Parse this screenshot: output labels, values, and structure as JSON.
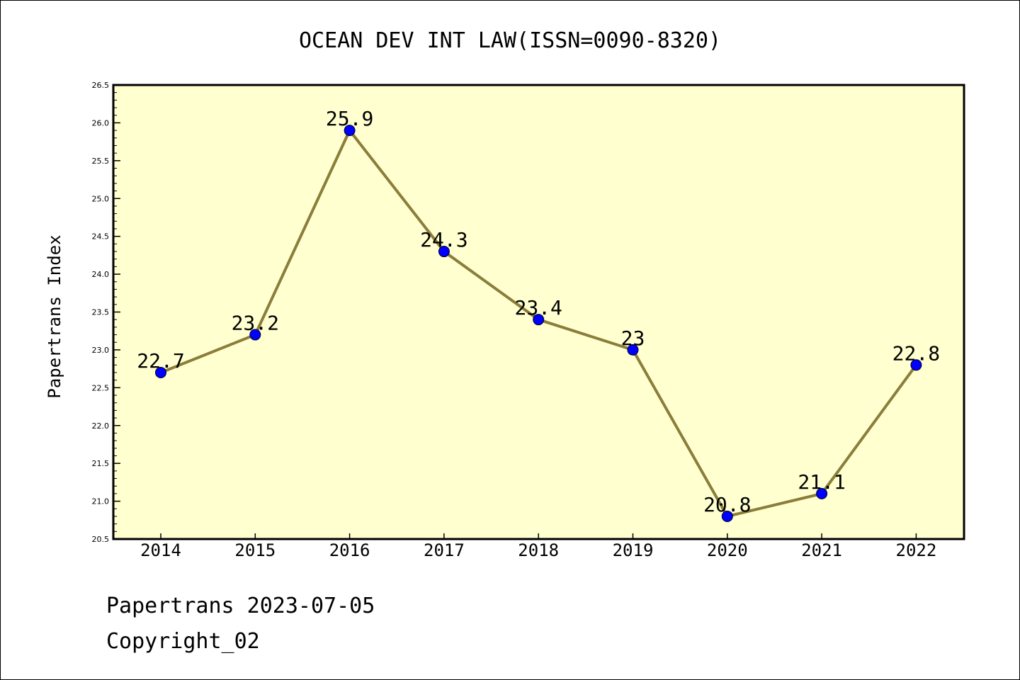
{
  "chart_data": {
    "type": "line",
    "title": "OCEAN DEV INT LAW(ISSN=0090-8320)",
    "xlabel": "",
    "ylabel": "Papertrans Index",
    "categories": [
      "2014",
      "2015",
      "2016",
      "2017",
      "2018",
      "2019",
      "2020",
      "2021",
      "2022"
    ],
    "values": [
      22.7,
      23.2,
      25.9,
      24.3,
      23.4,
      23,
      20.8,
      21.1,
      22.8
    ],
    "data_labels": [
      "22.7",
      "23.2",
      "25.9",
      "24.3",
      "23.4",
      "23",
      "20.8",
      "21.1",
      "22.8"
    ],
    "ylim": [
      20.5,
      26.5
    ],
    "yticks": [
      20.5,
      21.0,
      21.5,
      22.0,
      22.5,
      23.0,
      23.5,
      24.0,
      24.5,
      25.0,
      25.5,
      26.0,
      26.5
    ],
    "ytick_labels": [
      "20.5",
      "21.0",
      "21.5",
      "22.0",
      "22.5",
      "23.0",
      "23.5",
      "24.0",
      "24.5",
      "25.0",
      "25.5",
      "26.0",
      "26.5"
    ],
    "grid": false,
    "colors": {
      "plot_background": "#ffffd0",
      "line": "#8b7d3a",
      "marker": "#0000ff"
    }
  },
  "footer": {
    "line1": "Papertrans 2023-07-05",
    "line2": "Copyright_02"
  }
}
